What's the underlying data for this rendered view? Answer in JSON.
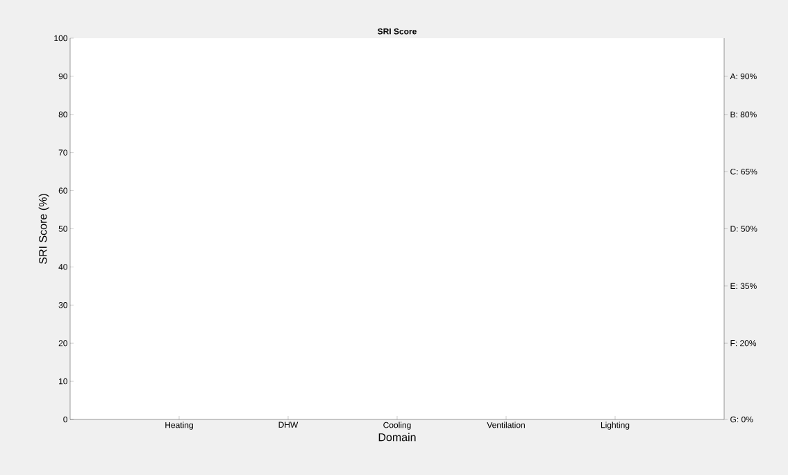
{
  "chart_data": {
    "type": "bar",
    "title": "SRI Score",
    "xlabel": "Domain",
    "ylabel": "SRI Score (%)",
    "categories": [
      "Heating",
      "DHW",
      "Cooling",
      "Ventilation",
      "Lighting"
    ],
    "values": [
      null,
      null,
      null,
      null,
      null
    ],
    "ylim": [
      0,
      100
    ],
    "yticks": [
      0,
      10,
      20,
      30,
      40,
      50,
      60,
      70,
      80,
      90,
      100
    ],
    "y2lim": [
      0,
      100
    ],
    "y2ticks": [
      {
        "value": 90,
        "label": "A: 90%"
      },
      {
        "value": 80,
        "label": "B: 80%"
      },
      {
        "value": 65,
        "label": "C: 65%"
      },
      {
        "value": 50,
        "label": "D: 50%"
      },
      {
        "value": 35,
        "label": "E: 35%"
      },
      {
        "value": 20,
        "label": "F: 20%"
      },
      {
        "value": 0,
        "label": "G: 0%"
      }
    ]
  }
}
